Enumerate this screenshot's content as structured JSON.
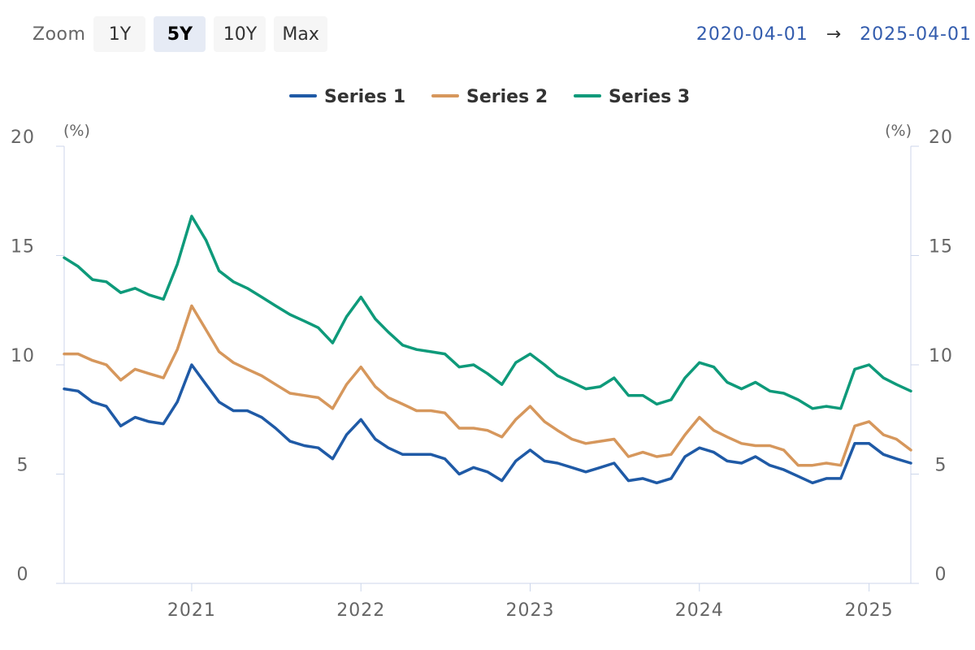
{
  "zoom": {
    "label": "Zoom",
    "buttons": [
      {
        "label": "1Y",
        "active": false
      },
      {
        "label": "5Y",
        "active": true
      },
      {
        "label": "10Y",
        "active": false
      },
      {
        "label": "Max",
        "active": false
      }
    ]
  },
  "range": {
    "from": "2020-04-01",
    "arrow": "→",
    "to": "2025-04-01"
  },
  "chart_data": {
    "type": "line",
    "xlabel": "",
    "ylabel": "(%)",
    "y2label": "(%)",
    "ylim": [
      0,
      20
    ],
    "yticks": [
      0,
      5,
      10,
      15,
      20
    ],
    "xlim": [
      "2020-04-01",
      "2025-04-01"
    ],
    "xticks": [
      "2021",
      "2022",
      "2023",
      "2024",
      "2025"
    ],
    "grid": false,
    "legend": "top-center",
    "x": [
      "2020-04",
      "2020-05",
      "2020-06",
      "2020-07",
      "2020-08",
      "2020-09",
      "2020-10",
      "2020-11",
      "2020-12",
      "2021-01",
      "2021-02",
      "2021-03",
      "2021-04",
      "2021-05",
      "2021-06",
      "2021-07",
      "2021-08",
      "2021-09",
      "2021-10",
      "2021-11",
      "2021-12",
      "2022-01",
      "2022-02",
      "2022-03",
      "2022-04",
      "2022-05",
      "2022-06",
      "2022-07",
      "2022-08",
      "2022-09",
      "2022-10",
      "2022-11",
      "2022-12",
      "2023-01",
      "2023-02",
      "2023-03",
      "2023-04",
      "2023-05",
      "2023-06",
      "2023-07",
      "2023-08",
      "2023-09",
      "2023-10",
      "2023-11",
      "2023-12",
      "2024-01",
      "2024-02",
      "2024-03",
      "2024-04",
      "2024-05",
      "2024-06",
      "2024-07",
      "2024-08",
      "2024-09",
      "2024-10",
      "2024-11",
      "2024-12",
      "2025-01",
      "2025-02",
      "2025-03",
      "2025-04"
    ],
    "series": [
      {
        "name": "Series 1",
        "color": "#1f5aa6",
        "values": [
          8.9,
          8.8,
          8.3,
          8.1,
          7.2,
          7.6,
          7.4,
          7.3,
          8.3,
          10.0,
          9.1,
          8.3,
          7.9,
          7.9,
          7.6,
          7.1,
          6.5,
          6.3,
          6.2,
          5.7,
          6.8,
          7.5,
          6.6,
          6.2,
          5.9,
          5.9,
          5.9,
          5.7,
          5.0,
          5.3,
          5.1,
          4.7,
          5.6,
          6.1,
          5.6,
          5.5,
          5.3,
          5.1,
          5.3,
          5.5,
          4.7,
          4.8,
          4.6,
          4.8,
          5.8,
          6.2,
          6.0,
          5.6,
          5.5,
          5.8,
          5.4,
          5.2,
          4.9,
          4.6,
          4.8,
          4.8,
          6.4,
          6.4,
          5.9,
          5.7,
          5.5
        ]
      },
      {
        "name": "Series 2",
        "color": "#d6975c",
        "values": [
          10.5,
          10.5,
          10.2,
          10.0,
          9.3,
          9.8,
          9.6,
          9.4,
          10.7,
          12.7,
          11.6,
          10.6,
          10.1,
          9.8,
          9.5,
          9.1,
          8.7,
          8.6,
          8.5,
          8.0,
          9.1,
          9.9,
          9.0,
          8.5,
          8.2,
          7.9,
          7.9,
          7.8,
          7.1,
          7.1,
          7.0,
          6.7,
          7.5,
          8.1,
          7.4,
          7.0,
          6.6,
          6.4,
          6.5,
          6.6,
          5.8,
          6.0,
          5.8,
          5.9,
          6.8,
          7.6,
          7.0,
          6.7,
          6.4,
          6.3,
          6.3,
          6.1,
          5.4,
          5.4,
          5.5,
          5.4,
          7.2,
          7.4,
          6.8,
          6.6,
          6.1
        ]
      },
      {
        "name": "Series 3",
        "color": "#0e9a7a",
        "values": [
          14.9,
          14.5,
          13.9,
          13.8,
          13.3,
          13.5,
          13.2,
          13.0,
          14.6,
          16.8,
          15.7,
          14.3,
          13.8,
          13.5,
          13.1,
          12.7,
          12.3,
          12.0,
          11.7,
          11.0,
          12.2,
          13.1,
          12.1,
          11.5,
          10.9,
          10.7,
          10.6,
          10.5,
          9.9,
          10.0,
          9.6,
          9.1,
          10.1,
          10.5,
          10.0,
          9.5,
          9.2,
          8.9,
          9.0,
          9.4,
          8.6,
          8.6,
          8.2,
          8.4,
          9.4,
          10.1,
          9.9,
          9.2,
          8.9,
          9.2,
          8.8,
          8.7,
          8.4,
          8.0,
          8.1,
          8.0,
          9.8,
          10.0,
          9.4,
          9.1,
          8.8
        ]
      }
    ]
  }
}
